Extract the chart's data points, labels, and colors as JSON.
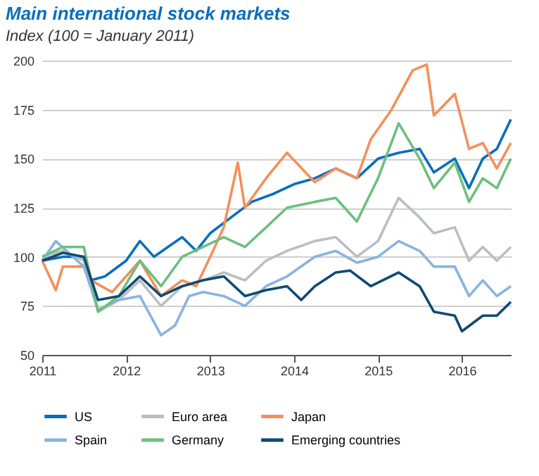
{
  "chart_data": {
    "type": "line",
    "title": "Main international stock markets",
    "subtitle": "Index (100 = January 2011)",
    "xlim": [
      "2011-01",
      "2016-08"
    ],
    "xticks": [
      "2011",
      "2012",
      "2013",
      "2014",
      "2015",
      "2016"
    ],
    "ylim": [
      50,
      200
    ],
    "yticks": [
      50,
      75,
      100,
      125,
      150,
      175,
      200
    ],
    "grid": "y",
    "legend": "bottom",
    "series": [
      {
        "name": "US",
        "color": "#0a6ebd",
        "x": [
          "2011-01",
          "2011-04",
          "2011-07",
          "2011-08",
          "2011-10",
          "2012-01",
          "2012-03",
          "2012-05",
          "2012-07",
          "2012-09",
          "2012-11",
          "2013-01",
          "2013-04",
          "2013-07",
          "2013-10",
          "2014-01",
          "2014-04",
          "2014-07",
          "2014-10",
          "2015-01",
          "2015-04",
          "2015-07",
          "2015-09",
          "2015-12",
          "2016-02",
          "2016-04",
          "2016-06",
          "2016-08"
        ],
        "values": [
          98,
          100,
          100,
          88,
          90,
          98,
          108,
          100,
          105,
          110,
          103,
          112,
          120,
          128,
          132,
          137,
          140,
          145,
          140,
          150,
          153,
          155,
          143,
          150,
          135,
          150,
          155,
          170
        ]
      },
      {
        "name": "Euro area",
        "color": "#b8bfc2",
        "x": [
          "2011-01",
          "2011-04",
          "2011-07",
          "2011-09",
          "2011-12",
          "2012-03",
          "2012-06",
          "2012-09",
          "2012-12",
          "2013-03",
          "2013-06",
          "2013-09",
          "2013-12",
          "2014-04",
          "2014-07",
          "2014-10",
          "2015-01",
          "2015-04",
          "2015-07",
          "2015-09",
          "2015-12",
          "2016-02",
          "2016-04",
          "2016-06",
          "2016-08"
        ],
        "values": [
          100,
          103,
          98,
          72,
          78,
          88,
          75,
          85,
          88,
          92,
          88,
          98,
          103,
          108,
          110,
          100,
          108,
          130,
          120,
          112,
          115,
          98,
          105,
          98,
          105
        ]
      },
      {
        "name": "Japan",
        "color": "#f4905a",
        "x": [
          "2011-01",
          "2011-03",
          "2011-04",
          "2011-07",
          "2011-08",
          "2011-11",
          "2012-03",
          "2012-06",
          "2012-09",
          "2012-11",
          "2013-01",
          "2013-03",
          "2013-05",
          "2013-06",
          "2013-09",
          "2013-12",
          "2014-04",
          "2014-07",
          "2014-10",
          "2014-12",
          "2015-03",
          "2015-06",
          "2015-08",
          "2015-09",
          "2015-12",
          "2016-02",
          "2016-04",
          "2016-06",
          "2016-08"
        ],
        "values": [
          98,
          83,
          95,
          95,
          88,
          82,
          98,
          80,
          88,
          85,
          100,
          115,
          148,
          125,
          140,
          153,
          138,
          145,
          140,
          160,
          175,
          195,
          198,
          172,
          183,
          155,
          158,
          145,
          158
        ]
      },
      {
        "name": "Spain",
        "color": "#8ab3e0",
        "x": [
          "2011-01",
          "2011-03",
          "2011-07",
          "2011-09",
          "2011-12",
          "2012-03",
          "2012-06",
          "2012-08",
          "2012-10",
          "2012-12",
          "2013-03",
          "2013-06",
          "2013-09",
          "2013-12",
          "2014-04",
          "2014-07",
          "2014-10",
          "2015-01",
          "2015-04",
          "2015-07",
          "2015-09",
          "2015-12",
          "2016-02",
          "2016-04",
          "2016-06",
          "2016-08"
        ],
        "values": [
          98,
          108,
          95,
          73,
          78,
          80,
          60,
          65,
          80,
          82,
          80,
          75,
          85,
          90,
          100,
          103,
          97,
          100,
          108,
          103,
          95,
          95,
          80,
          88,
          80,
          85
        ]
      },
      {
        "name": "Germany",
        "color": "#6cbf7e",
        "x": [
          "2011-01",
          "2011-04",
          "2011-07",
          "2011-09",
          "2011-12",
          "2012-03",
          "2012-06",
          "2012-09",
          "2012-12",
          "2013-03",
          "2013-06",
          "2013-09",
          "2013-12",
          "2014-04",
          "2014-07",
          "2014-10",
          "2015-01",
          "2015-04",
          "2015-07",
          "2015-09",
          "2015-12",
          "2016-02",
          "2016-04",
          "2016-06",
          "2016-08"
        ],
        "values": [
          100,
          105,
          105,
          72,
          80,
          98,
          85,
          100,
          105,
          110,
          105,
          115,
          125,
          128,
          130,
          118,
          140,
          168,
          150,
          135,
          148,
          128,
          140,
          135,
          150
        ]
      },
      {
        "name": "Emerging countries",
        "color": "#0d4b73",
        "x": [
          "2011-01",
          "2011-04",
          "2011-07",
          "2011-09",
          "2011-12",
          "2012-03",
          "2012-06",
          "2012-09",
          "2012-12",
          "2013-03",
          "2013-06",
          "2013-09",
          "2013-12",
          "2014-02",
          "2014-04",
          "2014-07",
          "2014-09",
          "2014-12",
          "2015-04",
          "2015-07",
          "2015-09",
          "2015-12",
          "2016-01",
          "2016-04",
          "2016-06",
          "2016-08"
        ],
        "values": [
          98,
          102,
          100,
          78,
          80,
          90,
          80,
          85,
          88,
          90,
          80,
          83,
          85,
          78,
          85,
          92,
          93,
          85,
          92,
          85,
          72,
          70,
          62,
          70,
          70,
          77
        ]
      }
    ]
  }
}
